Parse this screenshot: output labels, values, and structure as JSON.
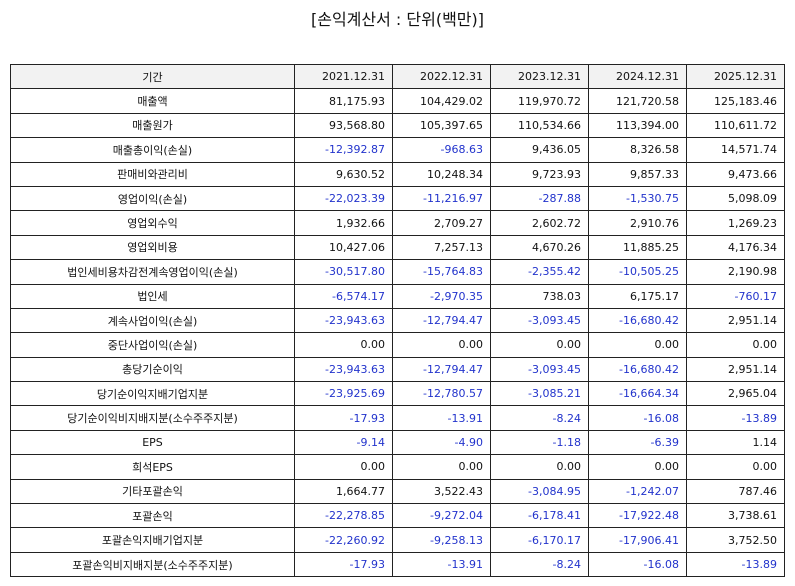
{
  "title": "[손익계산서 : 단위(백만)]",
  "table": {
    "header": [
      "기간",
      "2021.12.31",
      "2022.12.31",
      "2023.12.31",
      "2024.12.31",
      "2025.12.31"
    ],
    "rows": [
      [
        "매출액",
        "81,175.93",
        "104,429.02",
        "119,970.72",
        "121,720.58",
        "125,183.46"
      ],
      [
        "매출원가",
        "93,568.80",
        "105,397.65",
        "110,534.66",
        "113,394.00",
        "110,611.72"
      ],
      [
        "매출총이익(손실)",
        "-12,392.87",
        "-968.63",
        "9,436.05",
        "8,326.58",
        "14,571.74"
      ],
      [
        "판매비와관리비",
        "9,630.52",
        "10,248.34",
        "9,723.93",
        "9,857.33",
        "9,473.66"
      ],
      [
        "영업이익(손실)",
        "-22,023.39",
        "-11,216.97",
        "-287.88",
        "-1,530.75",
        "5,098.09"
      ],
      [
        "영업외수익",
        "1,932.66",
        "2,709.27",
        "2,602.72",
        "2,910.76",
        "1,269.23"
      ],
      [
        "영업외비용",
        "10,427.06",
        "7,257.13",
        "4,670.26",
        "11,885.25",
        "4,176.34"
      ],
      [
        "법인세비용차감전계속영업이익(손실)",
        "-30,517.80",
        "-15,764.83",
        "-2,355.42",
        "-10,505.25",
        "2,190.98"
      ],
      [
        "법인세",
        "-6,574.17",
        "-2,970.35",
        "738.03",
        "6,175.17",
        "-760.17"
      ],
      [
        "계속사업이익(손실)",
        "-23,943.63",
        "-12,794.47",
        "-3,093.45",
        "-16,680.42",
        "2,951.14"
      ],
      [
        "중단사업이익(손실)",
        "0.00",
        "0.00",
        "0.00",
        "0.00",
        "0.00"
      ],
      [
        "총당기순이익",
        "-23,943.63",
        "-12,794.47",
        "-3,093.45",
        "-16,680.42",
        "2,951.14"
      ],
      [
        "당기순이익지배기업지분",
        "-23,925.69",
        "-12,780.57",
        "-3,085.21",
        "-16,664.34",
        "2,965.04"
      ],
      [
        "당기순이익비지배지분(소수주주지분)",
        "-17.93",
        "-13.91",
        "-8.24",
        "-16.08",
        "-13.89"
      ],
      [
        "EPS",
        "-9.14",
        "-4.90",
        "-1.18",
        "-6.39",
        "1.14"
      ],
      [
        "희석EPS",
        "0.00",
        "0.00",
        "0.00",
        "0.00",
        "0.00"
      ],
      [
        "기타포괄손익",
        "1,664.77",
        "3,522.43",
        "-3,084.95",
        "-1,242.07",
        "787.46"
      ],
      [
        "포괄손익",
        "-22,278.85",
        "-9,272.04",
        "-6,178.41",
        "-17,922.48",
        "3,738.61"
      ],
      [
        "포괄손익지배기업지분",
        "-22,260.92",
        "-9,258.13",
        "-6,170.17",
        "-17,906.41",
        "3,752.50"
      ],
      [
        "포괄손익비지배지분(소수주주지분)",
        "-17.93",
        "-13.91",
        "-8.24",
        "-16.08",
        "-13.89"
      ]
    ]
  }
}
